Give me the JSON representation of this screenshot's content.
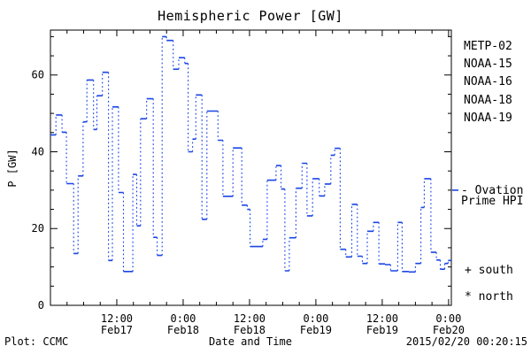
{
  "footer": {
    "credit": "Plot: CCMC",
    "timestamp": "2015/02/20 00:20:15"
  },
  "legend": {
    "satellites": [
      {
        "label": "METP-02",
        "color": "#000000"
      },
      {
        "label": "NOAA-15",
        "color": "#1535d6"
      },
      {
        "label": "NOAA-16",
        "color": "#30c8f8"
      },
      {
        "label": "NOAA-18",
        "color": "#5de287"
      },
      {
        "label": "NOAA-19",
        "color": "#ffa01e"
      }
    ],
    "line_series": {
      "label_line1": "- Ovation",
      "label_line2": "Prime HPI",
      "color": "#1a46e6"
    },
    "markers": {
      "south": "+ south",
      "north": "* north"
    }
  },
  "chart_data": {
    "type": "line",
    "subtype": "step-staircase-dotted-risers",
    "title": "Hemispheric Power [GW]",
    "xlabel": "Date and Time",
    "ylabel": "P [GW]",
    "series_name": "Ovation Prime HPI",
    "line_color": "#1a46e6",
    "grid": false,
    "legend_position": "right-outside",
    "ylim": [
      0,
      71.7
    ],
    "y_major_ticks": [
      0,
      20,
      40,
      60
    ],
    "y_minor_step": 5,
    "xlim_hours": [
      0,
      72.5
    ],
    "x_axis_start": "Feb17 00:00",
    "x_minor_step_hours": 3,
    "x_major_ticks": [
      {
        "hour": 0,
        "time": "",
        "date": ""
      },
      {
        "hour": 12,
        "time": "12:00",
        "date": "Feb17"
      },
      {
        "hour": 24,
        "time": "0:00",
        "date": "Feb18"
      },
      {
        "hour": 36,
        "time": "12:00",
        "date": "Feb18"
      },
      {
        "hour": 48,
        "time": "0:00",
        "date": "Feb19"
      },
      {
        "hour": 60,
        "time": "12:00",
        "date": "Feb19"
      },
      {
        "hour": 72,
        "time": "0:00",
        "date": "Feb20"
      }
    ],
    "current_value_marker_gw": 30,
    "steps": [
      [
        0.0,
        44.4
      ],
      [
        1.0,
        49.6
      ],
      [
        2.1,
        45.1
      ],
      [
        2.9,
        31.7
      ],
      [
        4.2,
        13.5
      ],
      [
        5.0,
        33.7
      ],
      [
        5.9,
        47.8
      ],
      [
        6.6,
        58.7
      ],
      [
        7.8,
        45.8
      ],
      [
        8.4,
        54.6
      ],
      [
        9.4,
        60.7
      ],
      [
        10.5,
        11.7
      ],
      [
        11.2,
        51.7
      ],
      [
        12.3,
        29.4
      ],
      [
        13.2,
        8.8
      ],
      [
        14.9,
        34.1
      ],
      [
        15.6,
        20.7
      ],
      [
        16.3,
        48.6
      ],
      [
        17.4,
        53.8
      ],
      [
        18.6,
        17.7
      ],
      [
        19.3,
        13.0
      ],
      [
        20.2,
        70.0
      ],
      [
        21.0,
        69.0
      ],
      [
        22.2,
        61.5
      ],
      [
        23.2,
        64.5
      ],
      [
        24.3,
        63.0
      ],
      [
        24.9,
        40.0
      ],
      [
        25.7,
        43.3
      ],
      [
        26.3,
        54.8
      ],
      [
        27.4,
        22.4
      ],
      [
        28.3,
        50.6
      ],
      [
        30.3,
        43.0
      ],
      [
        31.2,
        28.4
      ],
      [
        33.0,
        41.0
      ],
      [
        34.6,
        26.1
      ],
      [
        35.6,
        25.0
      ],
      [
        36.1,
        15.3
      ],
      [
        38.4,
        17.2
      ],
      [
        39.2,
        32.6
      ],
      [
        40.8,
        36.4
      ],
      [
        41.7,
        30.3
      ],
      [
        42.4,
        9.0
      ],
      [
        43.2,
        17.6
      ],
      [
        44.4,
        30.5
      ],
      [
        45.5,
        37.0
      ],
      [
        46.4,
        23.3
      ],
      [
        47.4,
        33.0
      ],
      [
        48.6,
        28.5
      ],
      [
        49.6,
        31.6
      ],
      [
        50.7,
        39.1
      ],
      [
        51.4,
        40.9
      ],
      [
        52.4,
        14.6
      ],
      [
        53.4,
        12.6
      ],
      [
        54.5,
        26.3
      ],
      [
        55.5,
        12.8
      ],
      [
        56.4,
        10.9
      ],
      [
        57.3,
        19.3
      ],
      [
        58.4,
        21.6
      ],
      [
        59.4,
        10.8
      ],
      [
        60.5,
        10.6
      ],
      [
        61.5,
        9.0
      ],
      [
        62.8,
        21.6
      ],
      [
        63.6,
        8.8
      ],
      [
        64.8,
        8.7
      ],
      [
        66.0,
        10.9
      ],
      [
        67.0,
        25.5
      ],
      [
        67.6,
        33.0
      ],
      [
        68.8,
        13.8
      ],
      [
        69.8,
        11.8
      ],
      [
        70.5,
        9.4
      ],
      [
        71.3,
        10.9
      ],
      [
        71.9,
        11.7
      ]
    ]
  }
}
